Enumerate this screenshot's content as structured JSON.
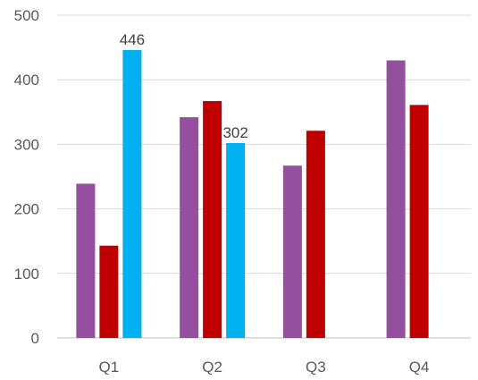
{
  "chart_data": {
    "type": "bar",
    "categories": [
      "Q1",
      "Q2",
      "Q3",
      "Q4"
    ],
    "series": [
      {
        "color": "#954F9F",
        "values": [
          239,
          342,
          267,
          430
        ]
      },
      {
        "color": "#C00000",
        "values": [
          143,
          367,
          321,
          361
        ]
      },
      {
        "color": "#00B0F0",
        "values": [
          446,
          302,
          null,
          null
        ]
      }
    ],
    "data_labels": [
      {
        "series": 2,
        "category": 0,
        "text": "446"
      },
      {
        "series": 2,
        "category": 1,
        "text": "302"
      }
    ],
    "yticks": [
      0,
      100,
      200,
      300,
      400,
      500
    ],
    "ylim": [
      0,
      500
    ],
    "grid": true,
    "legend": "none",
    "gridline_color": "#D9D9D9",
    "axis_color": "#BFBFBF"
  }
}
